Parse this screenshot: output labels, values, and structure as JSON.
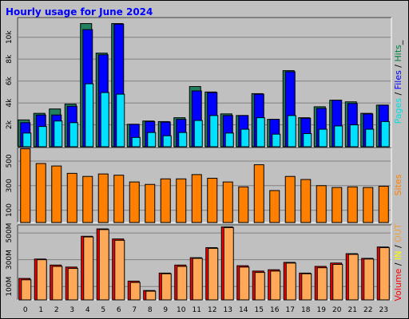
{
  "chart_data": {
    "type": "bar",
    "title": "Hourly usage for June 2024",
    "categories": [
      "0",
      "1",
      "2",
      "3",
      "4",
      "5",
      "6",
      "7",
      "8",
      "9",
      "10",
      "11",
      "12",
      "13",
      "14",
      "15",
      "16",
      "17",
      "18",
      "19",
      "20",
      "21",
      "22",
      "23"
    ],
    "panels": [
      {
        "name": "requests",
        "ylim": [
          0,
          11800
        ],
        "yticks": [
          2000,
          4000,
          6000,
          8000,
          10000
        ],
        "yticklabels": [
          "2k",
          "4k",
          "6k",
          "8k",
          "10k"
        ],
        "legend": [
          {
            "text": "Pages",
            "color": "#00e0e0"
          },
          {
            "text": " / ",
            "color": "#000000"
          },
          {
            "text": "Files",
            "color": "#0000ff"
          },
          {
            "text": " / ",
            "color": "#000000"
          },
          {
            "text": "Hits",
            "color": "#008040"
          },
          {
            "text": "_",
            "color": "#000000"
          }
        ],
        "series": [
          {
            "name": "Hits",
            "color": "#208060",
            "values": [
              2450,
              3050,
              3450,
              3900,
              11250,
              8550,
              11250,
              2050,
              2350,
              2300,
              2650,
              5500,
              5000,
              3000,
              2850,
              4850,
              2500,
              6950,
              2650,
              3650,
              4250,
              4100,
              3050,
              3800
            ]
          },
          {
            "name": "Files",
            "color": "#0000ff",
            "values": [
              2200,
              2900,
              2900,
              3700,
              10700,
              8400,
              11200,
              2050,
              2300,
              2250,
              2500,
              5100,
              4950,
              2850,
              2850,
              4800,
              2500,
              6850,
              2600,
              3500,
              4250,
              3950,
              3000,
              3800
            ]
          },
          {
            "name": "Pages",
            "color": "#00e0ff",
            "values": [
              1250,
              1850,
              2350,
              2200,
              5750,
              4950,
              4800,
              850,
              1300,
              1000,
              1300,
              2400,
              2850,
              1250,
              1600,
              2650,
              1150,
              2850,
              1200,
              1600,
              1900,
              2000,
              1600,
              2300
            ]
          }
        ]
      },
      {
        "name": "sites",
        "ylim": [
          0,
          610
        ],
        "yticks": [
          100,
          300,
          500
        ],
        "yticklabels": [
          "100",
          "300",
          "500"
        ],
        "legend": [
          {
            "text": "Sites",
            "color": "#ff8000"
          }
        ],
        "series": [
          {
            "name": "Sites",
            "color": "#ff8000",
            "values": [
              600,
              480,
              460,
              400,
              375,
              395,
              385,
              330,
              310,
              355,
              355,
              390,
              360,
              330,
              290,
              470,
              260,
              375,
              350,
              300,
              285,
              290,
              285,
              295
            ]
          }
        ]
      },
      {
        "name": "volume",
        "ylim": [
          0,
          560
        ],
        "yticks": [
          100,
          300,
          500
        ],
        "yticklabels": [
          "100M",
          "300M",
          "500M"
        ],
        "legend": [
          {
            "text": "Volume",
            "color": "#ff0000"
          },
          {
            "text": "  /  ",
            "color": "#000000"
          },
          {
            "text": "IN",
            "color": "#ffff00"
          },
          {
            "text": " / ",
            "color": "#000000"
          },
          {
            "text": "OUT",
            "color": "#f0a040"
          }
        ],
        "series": [
          {
            "name": "Volume",
            "color": "#ff0000",
            "values": [
              160,
              305,
              260,
              245,
              475,
              530,
              455,
              140,
              70,
              200,
              260,
              315,
              390,
              545,
              255,
              215,
              225,
              280,
              200,
              250,
              275,
              345,
              310,
              395
            ]
          },
          {
            "name": "OUT",
            "color": "#ffa858",
            "values": [
              150,
              300,
              250,
              235,
              470,
              525,
              445,
              130,
              65,
              195,
              250,
              310,
              385,
              540,
              245,
              205,
              215,
              275,
              195,
              240,
              265,
              340,
              305,
              390
            ]
          }
        ]
      }
    ]
  }
}
